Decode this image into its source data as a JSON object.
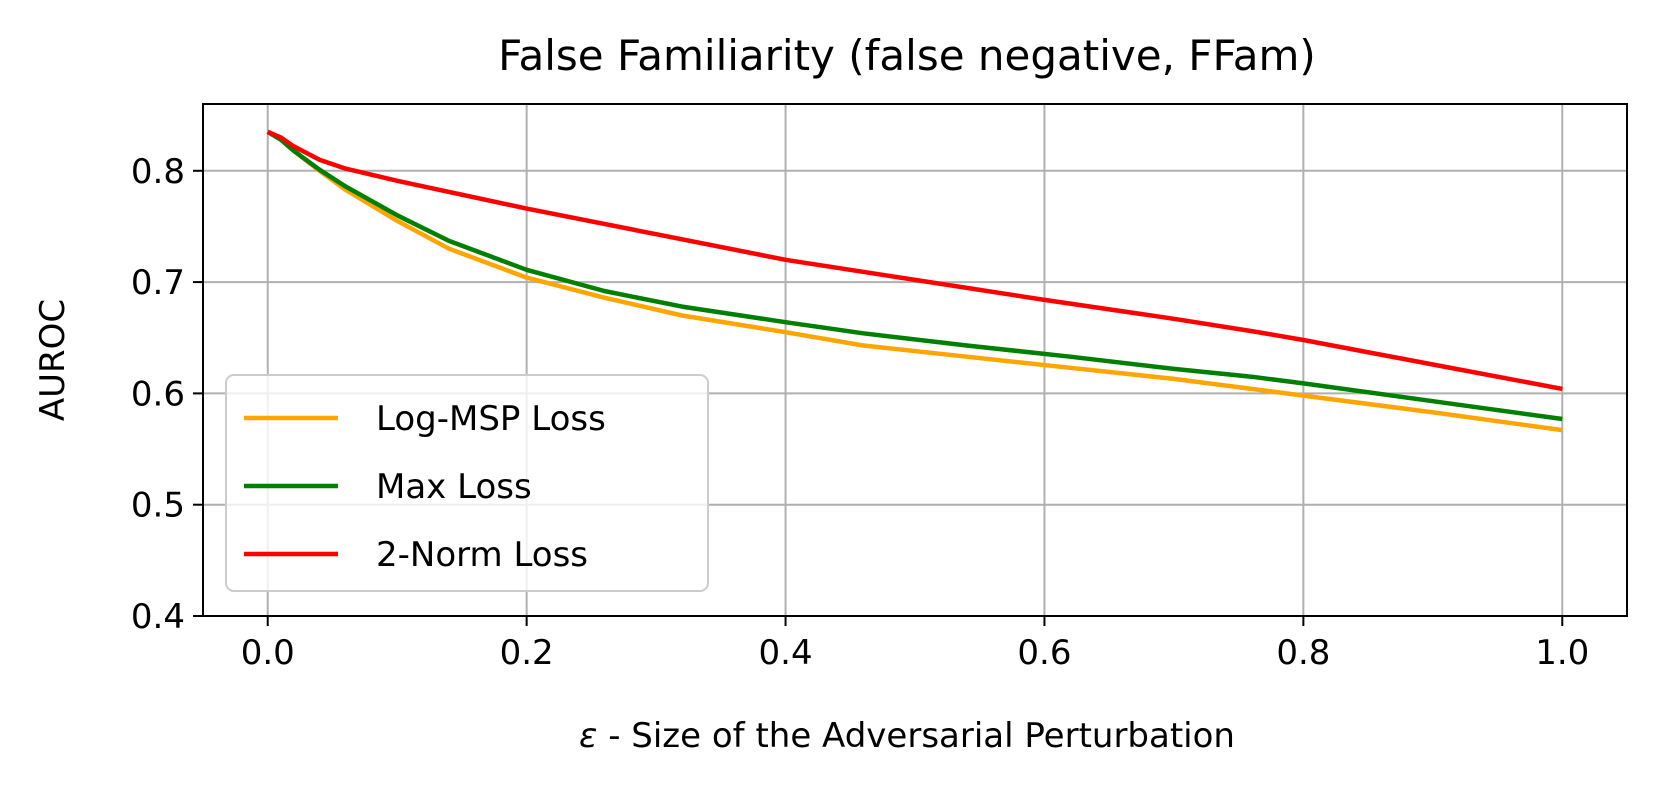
{
  "chart_data": {
    "type": "line",
    "title": "False Familiarity (false negative, FFam)",
    "xlabel_symbol": "ε",
    "xlabel_text": " - Size of the Adversarial Perturbation",
    "ylabel": "AUROC",
    "xlim": [
      -0.05,
      1.05
    ],
    "ylim": [
      0.4,
      0.86
    ],
    "xticks": [
      0.0,
      0.2,
      0.4,
      0.6,
      0.8,
      1.0
    ],
    "xtick_labels": [
      "0.0",
      "0.2",
      "0.4",
      "0.6",
      "0.8",
      "1.0"
    ],
    "yticks": [
      0.4,
      0.5,
      0.6,
      0.7,
      0.8
    ],
    "ytick_labels": [
      "0.4",
      "0.5",
      "0.6",
      "0.7",
      "0.8"
    ],
    "grid": true,
    "legend_position": "lower-left",
    "series": [
      {
        "name": "Log-MSP Loss",
        "color": "#FFA500",
        "x": [
          0.0,
          0.01,
          0.02,
          0.04,
          0.06,
          0.1,
          0.14,
          0.2,
          0.26,
          0.32,
          0.4,
          0.46,
          0.54,
          0.62,
          0.7,
          0.76,
          0.8,
          0.9,
          1.0
        ],
        "y": [
          0.835,
          0.828,
          0.818,
          0.8,
          0.783,
          0.755,
          0.73,
          0.704,
          0.686,
          0.67,
          0.655,
          0.643,
          0.633,
          0.623,
          0.613,
          0.604,
          0.598,
          0.583,
          0.567
        ]
      },
      {
        "name": "Max Loss",
        "color": "#008000",
        "x": [
          0.0,
          0.01,
          0.02,
          0.04,
          0.06,
          0.1,
          0.14,
          0.2,
          0.26,
          0.32,
          0.4,
          0.46,
          0.54,
          0.62,
          0.7,
          0.76,
          0.8,
          0.9,
          1.0
        ],
        "y": [
          0.835,
          0.828,
          0.818,
          0.801,
          0.786,
          0.76,
          0.737,
          0.711,
          0.692,
          0.678,
          0.664,
          0.654,
          0.643,
          0.633,
          0.622,
          0.615,
          0.609,
          0.593,
          0.577
        ]
      },
      {
        "name": "2-Norm Loss",
        "color": "#FF0000",
        "x": [
          0.0,
          0.01,
          0.02,
          0.04,
          0.06,
          0.1,
          0.2,
          0.3,
          0.4,
          0.5,
          0.6,
          0.7,
          0.76,
          0.8,
          0.9,
          1.0
        ],
        "y": [
          0.835,
          0.83,
          0.822,
          0.81,
          0.802,
          0.791,
          0.766,
          0.743,
          0.72,
          0.702,
          0.684,
          0.667,
          0.656,
          0.648,
          0.626,
          0.604
        ]
      }
    ]
  }
}
